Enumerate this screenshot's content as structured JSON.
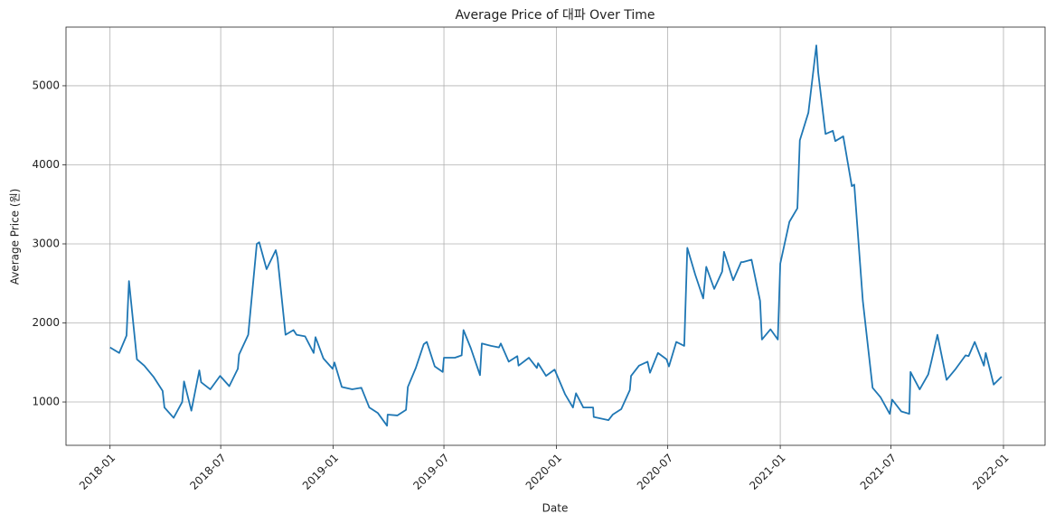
{
  "chart_data": {
    "type": "line",
    "title": "Average Price of 대파 Over Time",
    "xlabel": "Date",
    "ylabel": "Average Price (원)",
    "color": "#1f77b4",
    "grid": true,
    "x": [
      "2018-01-01",
      "2018-01-16",
      "2018-01-28",
      "2018-02-01",
      "2018-02-14",
      "2018-02-26",
      "2018-03-13",
      "2018-03-28",
      "2018-03-31",
      "2018-04-15",
      "2018-04-29",
      "2018-05-02",
      "2018-05-14",
      "2018-05-27",
      "2018-05-30",
      "2018-06-14",
      "2018-06-30",
      "2018-07-15",
      "2018-07-29",
      "2018-07-31",
      "2018-08-15",
      "2018-08-29",
      "2018-09-02",
      "2018-09-14",
      "2018-09-29",
      "2018-10-02",
      "2018-10-15",
      "2018-10-28",
      "2018-11-02",
      "2018-11-16",
      "2018-11-30",
      "2018-12-03",
      "2018-12-16",
      "2018-12-31",
      "2019-01-03",
      "2019-01-15",
      "2019-02-01",
      "2019-02-16",
      "2019-03-01",
      "2019-03-15",
      "2019-03-30",
      "2019-03-31",
      "2019-04-16",
      "2019-04-30",
      "2019-05-03",
      "2019-05-16",
      "2019-05-29",
      "2019-06-03",
      "2019-06-16",
      "2019-06-29",
      "2019-07-01",
      "2019-07-19",
      "2019-07-30",
      "2019-08-02",
      "2019-08-14",
      "2019-08-29",
      "2019-09-01",
      "2019-09-16",
      "2019-09-29",
      "2019-10-02",
      "2019-10-15",
      "2019-10-29",
      "2019-10-31",
      "2019-11-17",
      "2019-11-30",
      "2019-12-02",
      "2019-12-15",
      "2019-12-29",
      "2020-01-15",
      "2020-01-28",
      "2020-02-02",
      "2020-02-14",
      "2020-03-01",
      "2020-03-02",
      "2020-03-26",
      "2020-04-02",
      "2020-04-16",
      "2020-04-30",
      "2020-05-02",
      "2020-05-15",
      "2020-05-29",
      "2020-06-02",
      "2020-06-15",
      "2020-06-29",
      "2020-07-03",
      "2020-07-15",
      "2020-07-28",
      "2020-08-02",
      "2020-08-15",
      "2020-08-28",
      "2020-09-02",
      "2020-09-15",
      "2020-09-28",
      "2020-10-01",
      "2020-10-16",
      "2020-10-29",
      "2020-11-01",
      "2020-11-15",
      "2020-11-29",
      "2020-12-02",
      "2020-12-16",
      "2020-12-28",
      "2021-01-01",
      "2021-01-16",
      "2021-01-29",
      "2021-02-02",
      "2021-02-16",
      "2021-03-01",
      "2021-03-04",
      "2021-03-16",
      "2021-03-28",
      "2021-04-01",
      "2021-04-14",
      "2021-04-28",
      "2021-05-02",
      "2021-05-16",
      "2021-06-01",
      "2021-06-14",
      "2021-06-29",
      "2021-07-03",
      "2021-07-18",
      "2021-07-31",
      "2021-08-02",
      "2021-08-17",
      "2021-08-31",
      "2021-09-05",
      "2021-09-15",
      "2021-09-30",
      "2021-10-15",
      "2021-10-31",
      "2021-11-05",
      "2021-11-15",
      "2021-11-30",
      "2021-12-03",
      "2021-12-16",
      "2021-12-29"
    ],
    "values": [
      1690,
      1620,
      1840,
      2530,
      1540,
      1460,
      1320,
      1140,
      930,
      800,
      1000,
      1260,
      890,
      1400,
      1250,
      1160,
      1330,
      1200,
      1420,
      1600,
      1850,
      3000,
      3020,
      2680,
      2920,
      2820,
      1850,
      1910,
      1850,
      1830,
      1620,
      1820,
      1550,
      1420,
      1500,
      1190,
      1160,
      1180,
      930,
      860,
      700,
      840,
      830,
      900,
      1190,
      1430,
      1730,
      1760,
      1450,
      1380,
      1560,
      1560,
      1590,
      1910,
      1680,
      1340,
      1740,
      1710,
      1690,
      1740,
      1510,
      1580,
      1460,
      1560,
      1430,
      1490,
      1330,
      1410,
      1100,
      930,
      1110,
      930,
      930,
      810,
      770,
      840,
      910,
      1150,
      1330,
      1460,
      1510,
      1370,
      1620,
      1540,
      1450,
      1760,
      1710,
      2950,
      2610,
      2310,
      2710,
      2430,
      2650,
      2900,
      2540,
      2770,
      2770,
      2800,
      2280,
      1790,
      1920,
      1790,
      2750,
      3280,
      3450,
      4310,
      4660,
      5510,
      5170,
      4390,
      4430,
      4300,
      4360,
      3730,
      3750,
      2280,
      1180,
      1060,
      850,
      1030,
      880,
      850,
      1380,
      1160,
      1350,
      1510,
      1850,
      1280,
      1420,
      1590,
      1580,
      1760,
      1460,
      1620,
      1220,
      1320
    ],
    "xlim": [
      "2017-10-21",
      "2022-03-10"
    ],
    "xticks": [
      {
        "value": "2018-01-01",
        "label": "2018-01"
      },
      {
        "value": "2018-07-01",
        "label": "2018-07"
      },
      {
        "value": "2019-01-01",
        "label": "2019-01"
      },
      {
        "value": "2019-07-01",
        "label": "2019-07"
      },
      {
        "value": "2020-01-01",
        "label": "2020-01"
      },
      {
        "value": "2020-07-01",
        "label": "2020-07"
      },
      {
        "value": "2021-01-01",
        "label": "2021-01"
      },
      {
        "value": "2021-07-01",
        "label": "2021-07"
      },
      {
        "value": "2022-01-01",
        "label": "2022-01"
      }
    ],
    "ylim": [
      452,
      5742
    ],
    "yticks": [
      1000,
      2000,
      3000,
      4000,
      5000
    ]
  }
}
